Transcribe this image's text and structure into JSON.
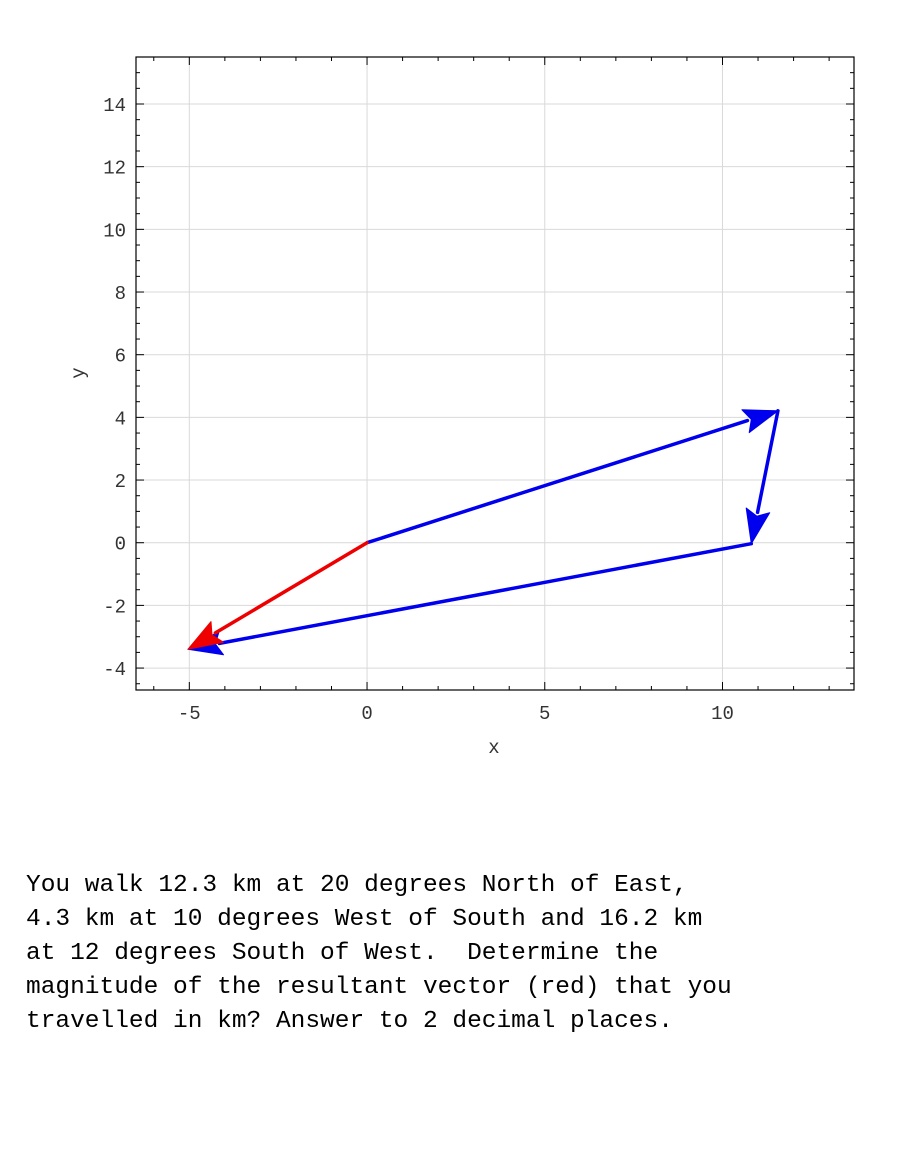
{
  "chart_data": {
    "type": "vector-plot",
    "xlabel": "x",
    "ylabel": "y",
    "xlim": [
      -6.5,
      13.7
    ],
    "ylim": [
      -4.7,
      15.5
    ],
    "xticks": [
      -5,
      0,
      5,
      10
    ],
    "yticks": [
      -4,
      -2,
      0,
      2,
      4,
      6,
      8,
      10,
      12,
      14
    ],
    "grid": true,
    "vectors": [
      {
        "color": "#0000ee",
        "from": [
          0,
          0
        ],
        "to": [
          11.56,
          4.21
        ]
      },
      {
        "color": "#0000ee",
        "from": [
          11.56,
          4.21
        ],
        "to": [
          10.81,
          -0.03
        ]
      },
      {
        "color": "#0000ee",
        "from": [
          10.81,
          -0.03
        ],
        "to": [
          -5.04,
          -3.4
        ]
      },
      {
        "color": "#ee0000",
        "from": [
          0,
          0
        ],
        "to": [
          -5.04,
          -3.4
        ]
      }
    ]
  },
  "question": {
    "lines": [
      "You walk 12.3 km at 20 degrees North of East,",
      "4.3 km at 10 degrees West of South and 16.2 km",
      "at 12 degrees South of West.  Determine the",
      "magnitude of the resultant vector (red) that you",
      "travelled in km? Answer to 2 decimal places."
    ]
  }
}
